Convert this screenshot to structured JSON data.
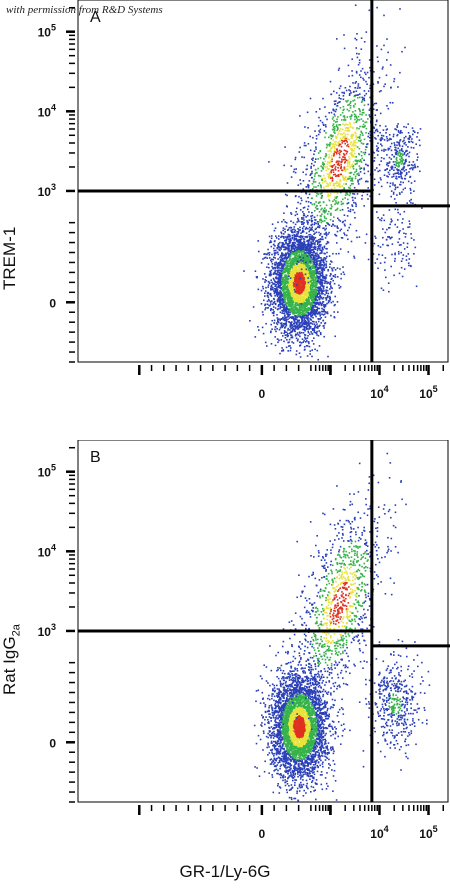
{
  "watermark": "with permission from R&D Systems",
  "x_axis_title": "GR-1/Ly-6G",
  "colors": {
    "low": "#2a3fb8",
    "mid": "#36b24a",
    "high": "#e8e23a",
    "peak": "#e03020",
    "frame": "#000000"
  },
  "chart_data": [
    {
      "type": "scatter",
      "panel_label": "A",
      "ylabel": "TREM-1",
      "ylabel_sub": "",
      "xlabel": "GR-1/Ly-6G",
      "scale": "biexponential",
      "x_ticks": [
        {
          "label": "0",
          "sup": ""
        },
        {
          "label": "10",
          "sup": "4"
        },
        {
          "label": "10",
          "sup": "5"
        }
      ],
      "y_ticks": [
        {
          "label": "0",
          "sup": ""
        },
        {
          "label": "10",
          "sup": "3"
        },
        {
          "label": "10",
          "sup": "4"
        },
        {
          "label": "10",
          "sup": "5"
        }
      ],
      "xlim": [
        -1500,
        250000
      ],
      "ylim": [
        -300,
        250000
      ],
      "quadrant_x_gate": 7000,
      "quadrant_y_gate_left": 1000,
      "quadrant_y_gate_right": 650,
      "populations": [
        {
          "x_center": 300,
          "y_center": 100,
          "count": 4200,
          "spread": 1.0
        },
        {
          "x_center": 1500,
          "y_center": 2500,
          "count": 1300,
          "spread": 1.6
        },
        {
          "x_center": 25000,
          "y_center": 2500,
          "count": 300,
          "spread": 0.7
        },
        {
          "x_center": 18000,
          "y_center": 300,
          "count": 120,
          "spread": 0.9
        }
      ]
    },
    {
      "type": "scatter",
      "panel_label": "B",
      "ylabel": "Rat IgG",
      "ylabel_sub": "2a",
      "xlabel": "GR-1/Ly-6G",
      "scale": "biexponential",
      "x_ticks": [
        {
          "label": "0",
          "sup": ""
        },
        {
          "label": "10",
          "sup": "4"
        },
        {
          "label": "10",
          "sup": "5"
        }
      ],
      "y_ticks": [
        {
          "label": "0",
          "sup": ""
        },
        {
          "label": "10",
          "sup": "3"
        },
        {
          "label": "10",
          "sup": "4"
        },
        {
          "label": "10",
          "sup": "5"
        }
      ],
      "xlim": [
        -1500,
        250000
      ],
      "ylim": [
        -300,
        250000
      ],
      "quadrant_x_gate": 7000,
      "quadrant_y_gate_left": 1000,
      "quadrant_y_gate_right": 650,
      "populations": [
        {
          "x_center": 300,
          "y_center": 80,
          "count": 4000,
          "spread": 1.0
        },
        {
          "x_center": 1500,
          "y_center": 2200,
          "count": 1100,
          "spread": 1.6
        },
        {
          "x_center": 20000,
          "y_center": 200,
          "count": 420,
          "spread": 0.9
        }
      ]
    }
  ]
}
